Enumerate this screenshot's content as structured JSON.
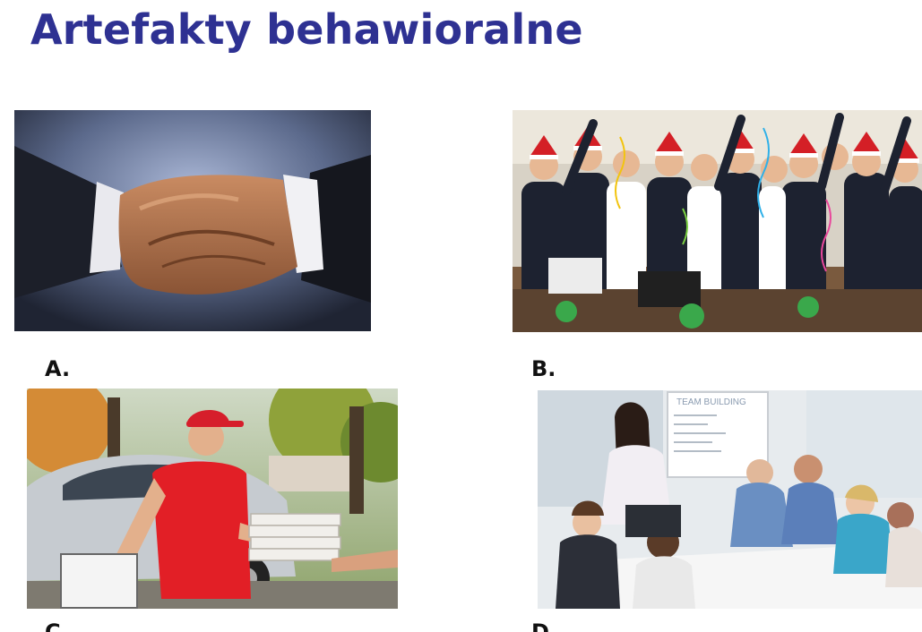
{
  "slide": {
    "title": "Artefakty behawioralne"
  },
  "panels": [
    {
      "label": "A.",
      "image": "handshake-photo"
    },
    {
      "label": "B.",
      "image": "office-christmas-party-photo"
    },
    {
      "label": "C.",
      "image": "pizza-delivery-photo"
    },
    {
      "label": "D.",
      "image": "team-meeting-photo"
    }
  ],
  "whiteboard": {
    "heading": "TEAM BUILDING"
  }
}
